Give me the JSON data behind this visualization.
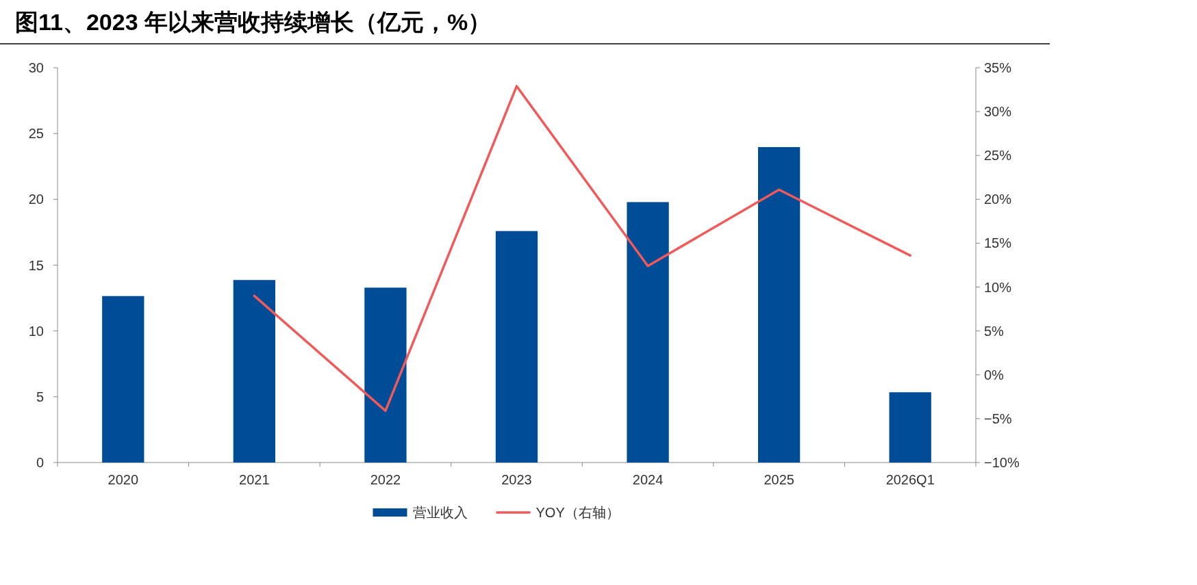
{
  "chart_data": {
    "type": "bar",
    "title": "图11、2023 年以来营收持续增长（亿元，%）",
    "categories": [
      "2020",
      "2021",
      "2022",
      "2023",
      "2024",
      "2025",
      "2026Q1"
    ],
    "series": [
      {
        "name": "营业收入",
        "color": "#004c97",
        "values": [
          12.65,
          13.87,
          13.29,
          17.59,
          19.79,
          23.97,
          5.34
        ]
      },
      {
        "name": "YOY（右轴）",
        "type": "line",
        "axis": "y2",
        "color": "#f05a5a",
        "values": [
          null,
          9.0,
          -4.1,
          32.9,
          12.4,
          21.1,
          13.6
        ]
      }
    ],
    "ylim": [
      0,
      30
    ],
    "yticks": [
      0,
      5,
      10,
      15,
      20,
      25,
      30
    ],
    "y2lim": [
      -10,
      35
    ],
    "y2ticks": [
      {
        "value": -10,
        "label": "−10%"
      },
      {
        "value": -5,
        "label": "−5%"
      },
      {
        "value": 0,
        "label": "0%"
      },
      {
        "value": 5,
        "label": "5%"
      },
      {
        "value": 10,
        "label": "10%"
      },
      {
        "value": 15,
        "label": "15%"
      },
      {
        "value": 20,
        "label": "20%"
      },
      {
        "value": 25,
        "label": "25%"
      },
      {
        "value": 30,
        "label": "30%"
      },
      {
        "value": 35,
        "label": "35%"
      }
    ],
    "grid": false,
    "legend": "bottom"
  }
}
